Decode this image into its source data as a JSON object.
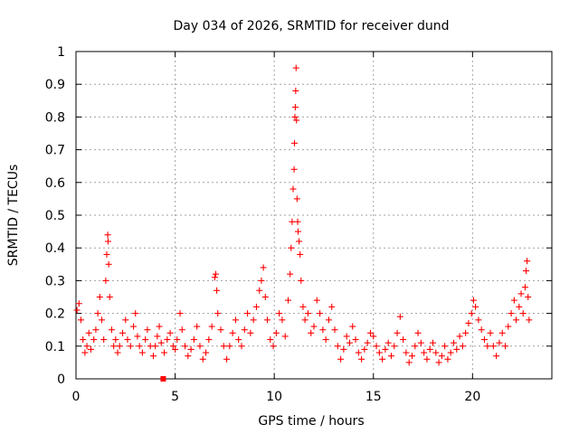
{
  "chart_data": {
    "type": "scatter",
    "title": "Day 034 of 2026, SRMTID for receiver dund",
    "xlabel": "GPS time / hours",
    "ylabel": "SRMTID / TECUs",
    "xlim": [
      0,
      24
    ],
    "ylim": [
      0,
      1
    ],
    "xticks": [
      0,
      5,
      10,
      15,
      20
    ],
    "xtick_labels": [
      "0",
      "5",
      "10",
      "15",
      "20"
    ],
    "yticks": [
      0,
      0.1,
      0.2,
      0.3,
      0.4,
      0.5,
      0.6,
      0.7,
      0.8,
      0.9,
      1
    ],
    "ytick_labels": [
      "0",
      "0.1",
      "0.2",
      "0.3",
      "0.4",
      "0.5",
      "0.6",
      "0.7",
      "0.8",
      "0.9",
      "1"
    ],
    "grid": true,
    "marker": "plus",
    "color": "#ff0000",
    "series": [
      {
        "name": "SRMTID",
        "points": [
          [
            0.05,
            0.21
          ],
          [
            0.15,
            0.23
          ],
          [
            0.25,
            0.18
          ],
          [
            0.35,
            0.12
          ],
          [
            0.45,
            0.08
          ],
          [
            0.55,
            0.1
          ],
          [
            0.65,
            0.14
          ],
          [
            0.75,
            0.09
          ],
          [
            0.9,
            0.12
          ],
          [
            1.0,
            0.15
          ],
          [
            1.1,
            0.2
          ],
          [
            1.2,
            0.25
          ],
          [
            1.3,
            0.18
          ],
          [
            1.4,
            0.12
          ],
          [
            1.5,
            0.3
          ],
          [
            1.55,
            0.38
          ],
          [
            1.6,
            0.44
          ],
          [
            1.62,
            0.42
          ],
          [
            1.65,
            0.35
          ],
          [
            1.7,
            0.25
          ],
          [
            1.8,
            0.15
          ],
          [
            1.9,
            0.1
          ],
          [
            2.0,
            0.12
          ],
          [
            2.1,
            0.08
          ],
          [
            2.2,
            0.1
          ],
          [
            2.35,
            0.14
          ],
          [
            2.5,
            0.18
          ],
          [
            2.6,
            0.12
          ],
          [
            2.75,
            0.1
          ],
          [
            2.9,
            0.16
          ],
          [
            3.0,
            0.2
          ],
          [
            3.1,
            0.13
          ],
          [
            3.2,
            0.1
          ],
          [
            3.35,
            0.08
          ],
          [
            3.5,
            0.12
          ],
          [
            3.6,
            0.15
          ],
          [
            3.75,
            0.1
          ],
          [
            3.9,
            0.07
          ],
          [
            4.0,
            0.1
          ],
          [
            4.1,
            0.13
          ],
          [
            4.2,
            0.16
          ],
          [
            4.3,
            0.11
          ],
          [
            4.45,
            0.08
          ],
          [
            4.6,
            0.12
          ],
          [
            4.75,
            0.14
          ],
          [
            4.9,
            0.1
          ],
          [
            5.0,
            0.09
          ],
          [
            5.1,
            0.12
          ],
          [
            5.25,
            0.2
          ],
          [
            5.35,
            0.15
          ],
          [
            5.5,
            0.1
          ],
          [
            5.65,
            0.07
          ],
          [
            5.8,
            0.09
          ],
          [
            5.95,
            0.12
          ],
          [
            6.1,
            0.16
          ],
          [
            6.25,
            0.1
          ],
          [
            6.4,
            0.06
          ],
          [
            6.55,
            0.08
          ],
          [
            6.7,
            0.12
          ],
          [
            6.85,
            0.16
          ],
          [
            7.0,
            0.31
          ],
          [
            7.05,
            0.32
          ],
          [
            7.1,
            0.27
          ],
          [
            7.15,
            0.2
          ],
          [
            7.3,
            0.15
          ],
          [
            7.45,
            0.1
          ],
          [
            7.6,
            0.06
          ],
          [
            7.75,
            0.1
          ],
          [
            7.9,
            0.14
          ],
          [
            8.05,
            0.18
          ],
          [
            8.2,
            0.12
          ],
          [
            8.35,
            0.1
          ],
          [
            8.5,
            0.15
          ],
          [
            8.65,
            0.2
          ],
          [
            8.8,
            0.14
          ],
          [
            8.95,
            0.18
          ],
          [
            9.1,
            0.22
          ],
          [
            9.25,
            0.27
          ],
          [
            9.35,
            0.3
          ],
          [
            9.45,
            0.34
          ],
          [
            9.55,
            0.25
          ],
          [
            9.65,
            0.18
          ],
          [
            9.8,
            0.12
          ],
          [
            9.95,
            0.1
          ],
          [
            10.1,
            0.14
          ],
          [
            10.25,
            0.2
          ],
          [
            10.4,
            0.18
          ],
          [
            10.55,
            0.13
          ],
          [
            10.7,
            0.24
          ],
          [
            10.8,
            0.32
          ],
          [
            10.85,
            0.4
          ],
          [
            10.9,
            0.48
          ],
          [
            10.95,
            0.58
          ],
          [
            11.0,
            0.64
          ],
          [
            11.02,
            0.72
          ],
          [
            11.04,
            0.8
          ],
          [
            11.06,
            0.83
          ],
          [
            11.08,
            0.88
          ],
          [
            11.1,
            0.95
          ],
          [
            11.12,
            0.79
          ],
          [
            11.15,
            0.55
          ],
          [
            11.18,
            0.48
          ],
          [
            11.2,
            0.45
          ],
          [
            11.25,
            0.42
          ],
          [
            11.3,
            0.38
          ],
          [
            11.35,
            0.3
          ],
          [
            11.45,
            0.22
          ],
          [
            11.55,
            0.18
          ],
          [
            11.7,
            0.2
          ],
          [
            11.85,
            0.14
          ],
          [
            12.0,
            0.16
          ],
          [
            12.15,
            0.24
          ],
          [
            12.3,
            0.2
          ],
          [
            12.45,
            0.15
          ],
          [
            12.6,
            0.12
          ],
          [
            12.75,
            0.18
          ],
          [
            12.9,
            0.22
          ],
          [
            13.05,
            0.15
          ],
          [
            13.2,
            0.1
          ],
          [
            13.35,
            0.06
          ],
          [
            13.5,
            0.09
          ],
          [
            13.65,
            0.13
          ],
          [
            13.8,
            0.11
          ],
          [
            13.95,
            0.16
          ],
          [
            14.1,
            0.12
          ],
          [
            14.25,
            0.08
          ],
          [
            14.4,
            0.06
          ],
          [
            14.55,
            0.09
          ],
          [
            14.7,
            0.11
          ],
          [
            14.85,
            0.14
          ],
          [
            15.0,
            0.13
          ],
          [
            15.15,
            0.1
          ],
          [
            15.3,
            0.08
          ],
          [
            15.45,
            0.06
          ],
          [
            15.6,
            0.09
          ],
          [
            15.75,
            0.11
          ],
          [
            15.9,
            0.07
          ],
          [
            16.05,
            0.1
          ],
          [
            16.2,
            0.14
          ],
          [
            16.35,
            0.19
          ],
          [
            16.5,
            0.12
          ],
          [
            16.65,
            0.08
          ],
          [
            16.8,
            0.05
          ],
          [
            16.95,
            0.07
          ],
          [
            17.1,
            0.1
          ],
          [
            17.25,
            0.14
          ],
          [
            17.4,
            0.11
          ],
          [
            17.55,
            0.08
          ],
          [
            17.7,
            0.06
          ],
          [
            17.85,
            0.09
          ],
          [
            18.0,
            0.11
          ],
          [
            18.15,
            0.08
          ],
          [
            18.3,
            0.05
          ],
          [
            18.45,
            0.07
          ],
          [
            18.6,
            0.1
          ],
          [
            18.75,
            0.06
          ],
          [
            18.9,
            0.08
          ],
          [
            19.05,
            0.11
          ],
          [
            19.2,
            0.09
          ],
          [
            19.35,
            0.13
          ],
          [
            19.5,
            0.1
          ],
          [
            19.65,
            0.14
          ],
          [
            19.8,
            0.17
          ],
          [
            19.95,
            0.2
          ],
          [
            20.05,
            0.24
          ],
          [
            20.15,
            0.22
          ],
          [
            20.3,
            0.18
          ],
          [
            20.45,
            0.15
          ],
          [
            20.6,
            0.12
          ],
          [
            20.75,
            0.1
          ],
          [
            20.9,
            0.14
          ],
          [
            21.05,
            0.1
          ],
          [
            21.2,
            0.07
          ],
          [
            21.35,
            0.11
          ],
          [
            21.5,
            0.14
          ],
          [
            21.65,
            0.1
          ],
          [
            21.8,
            0.16
          ],
          [
            21.95,
            0.2
          ],
          [
            22.1,
            0.24
          ],
          [
            22.2,
            0.18
          ],
          [
            22.35,
            0.22
          ],
          [
            22.45,
            0.26
          ],
          [
            22.55,
            0.2
          ],
          [
            22.65,
            0.28
          ],
          [
            22.7,
            0.33
          ],
          [
            22.75,
            0.36
          ],
          [
            22.8,
            0.25
          ],
          [
            22.85,
            0.18
          ]
        ]
      }
    ],
    "extra_marker": {
      "x": 4.4,
      "y": 0,
      "shape": "square"
    }
  }
}
